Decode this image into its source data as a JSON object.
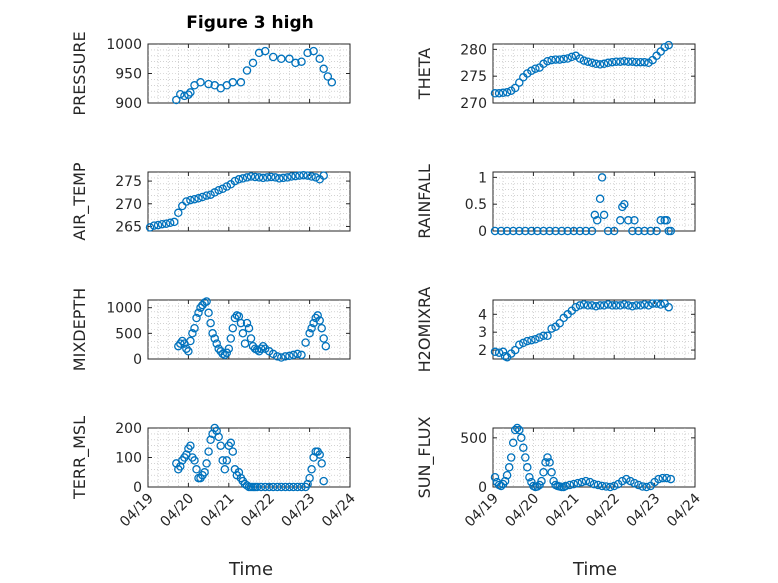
{
  "figure": {
    "title": "Figure 3 high",
    "xlabel": "Time"
  },
  "chart_data": [
    {
      "type": "scatter",
      "ylabel": "PRESSURE",
      "xlim": [
        0,
        5
      ],
      "ylim": [
        900,
        1000
      ],
      "yticks": [
        900,
        950,
        1000
      ],
      "grid": true,
      "minor_grid": true,
      "x": [
        0.7,
        0.8,
        0.9,
        1.0,
        1.05,
        1.15,
        1.3,
        1.5,
        1.65,
        1.8,
        1.95,
        2.1,
        2.3,
        2.45,
        2.6,
        2.75,
        2.9,
        3.1,
        3.3,
        3.5,
        3.65,
        3.8,
        3.95,
        4.1,
        4.25,
        4.35,
        4.45,
        4.55
      ],
      "y": [
        905,
        915,
        912,
        914,
        918,
        930,
        935,
        932,
        930,
        925,
        930,
        935,
        935,
        955,
        968,
        985,
        988,
        978,
        975,
        975,
        968,
        970,
        985,
        988,
        975,
        958,
        945,
        935
      ]
    },
    {
      "type": "scatter",
      "ylabel": "THETA",
      "xlim": [
        0,
        5
      ],
      "ylim": [
        270,
        281
      ],
      "yticks": [
        270,
        275,
        280
      ],
      "grid": true,
      "minor_grid": true,
      "x": [
        0.05,
        0.15,
        0.25,
        0.35,
        0.45,
        0.55,
        0.65,
        0.75,
        0.85,
        0.95,
        1.05,
        1.15,
        1.25,
        1.35,
        1.45,
        1.55,
        1.65,
        1.75,
        1.85,
        1.95,
        2.05,
        2.15,
        2.25,
        2.35,
        2.45,
        2.55,
        2.65,
        2.75,
        2.85,
        2.95,
        3.05,
        3.15,
        3.25,
        3.35,
        3.45,
        3.55,
        3.65,
        3.75,
        3.85,
        3.95,
        4.05,
        4.15,
        4.25,
        4.35
      ],
      "y": [
        271.8,
        271.8,
        271.9,
        272.0,
        272.3,
        272.8,
        273.8,
        274.8,
        275.5,
        276.0,
        276.4,
        276.6,
        277.3,
        277.8,
        278.0,
        278.1,
        278.1,
        278.2,
        278.3,
        278.6,
        278.8,
        278.3,
        277.9,
        277.7,
        277.5,
        277.3,
        277.2,
        277.3,
        277.5,
        277.6,
        277.7,
        277.7,
        277.8,
        277.7,
        277.7,
        277.6,
        277.6,
        277.6,
        277.5,
        278.0,
        278.8,
        279.6,
        280.4,
        280.8
      ]
    },
    {
      "type": "scatter",
      "ylabel": "AIR_TEMP",
      "xlim": [
        0,
        5
      ],
      "ylim": [
        264,
        277
      ],
      "yticks": [
        265,
        270,
        275
      ],
      "grid": true,
      "minor_grid": true,
      "x": [
        0.05,
        0.15,
        0.25,
        0.35,
        0.45,
        0.55,
        0.65,
        0.75,
        0.85,
        0.95,
        1.05,
        1.15,
        1.25,
        1.35,
        1.45,
        1.55,
        1.65,
        1.75,
        1.85,
        1.95,
        2.05,
        2.15,
        2.25,
        2.35,
        2.45,
        2.55,
        2.65,
        2.75,
        2.85,
        2.95,
        3.05,
        3.15,
        3.25,
        3.35,
        3.45,
        3.55,
        3.65,
        3.75,
        3.85,
        3.95,
        4.05,
        4.15,
        4.25,
        4.35
      ],
      "y": [
        264.8,
        265.2,
        265.3,
        265.5,
        265.6,
        265.8,
        266.0,
        268.0,
        269.5,
        270.5,
        270.8,
        271.0,
        271.2,
        271.5,
        271.8,
        272.0,
        272.5,
        273.0,
        273.3,
        273.8,
        274.3,
        275.0,
        275.4,
        275.6,
        275.8,
        276.0,
        275.9,
        275.8,
        275.7,
        275.8,
        275.9,
        275.8,
        275.6,
        275.7,
        275.8,
        276.0,
        276.1,
        276.2,
        276.3,
        276.2,
        276.0,
        275.8,
        275.4,
        276.2
      ]
    },
    {
      "type": "scatter",
      "ylabel": "RAINFALL",
      "xlim": [
        0,
        5
      ],
      "ylim": [
        0,
        1.1
      ],
      "yticks": [
        0,
        0.5,
        1
      ],
      "grid": true,
      "minor_grid": true,
      "x": [
        0.05,
        0.2,
        0.35,
        0.5,
        0.65,
        0.8,
        0.95,
        1.1,
        1.25,
        1.4,
        1.55,
        1.7,
        1.85,
        2.0,
        2.15,
        2.3,
        2.45,
        2.52,
        2.58,
        2.65,
        2.7,
        2.75,
        2.85,
        3.0,
        3.15,
        3.2,
        3.25,
        3.35,
        3.45,
        3.5,
        3.6,
        3.75,
        3.9,
        4.05,
        4.15,
        4.25,
        4.3,
        4.35,
        4.4
      ],
      "y": [
        0,
        0,
        0,
        0,
        0,
        0,
        0,
        0,
        0,
        0,
        0,
        0,
        0,
        0,
        0,
        0,
        0,
        0.3,
        0.2,
        0.6,
        1.0,
        0.3,
        0,
        0,
        0.2,
        0.45,
        0.5,
        0.2,
        0,
        0.2,
        0,
        0,
        0,
        0,
        0.2,
        0.2,
        0.2,
        0,
        0
      ]
    },
    {
      "type": "scatter",
      "ylabel": "MIXDEPTH",
      "xlim": [
        0,
        5
      ],
      "ylim": [
        0,
        1150
      ],
      "yticks": [
        0,
        500,
        1000
      ],
      "grid": true,
      "minor_grid": true,
      "x": [
        0.75,
        0.8,
        0.85,
        0.9,
        0.95,
        1.0,
        1.05,
        1.1,
        1.15,
        1.2,
        1.25,
        1.3,
        1.35,
        1.4,
        1.45,
        1.5,
        1.55,
        1.6,
        1.65,
        1.7,
        1.75,
        1.8,
        1.85,
        1.9,
        1.95,
        2.0,
        2.05,
        2.1,
        2.15,
        2.2,
        2.25,
        2.3,
        2.35,
        2.4,
        2.45,
        2.5,
        2.55,
        2.6,
        2.65,
        2.7,
        2.75,
        2.8,
        2.85,
        2.9,
        3.0,
        3.1,
        3.2,
        3.3,
        3.4,
        3.5,
        3.6,
        3.7,
        3.8,
        3.9,
        4.0,
        4.05,
        4.1,
        4.15,
        4.2,
        4.25,
        4.3,
        4.35,
        4.4
      ],
      "y": [
        250,
        300,
        350,
        300,
        200,
        150,
        350,
        500,
        600,
        800,
        900,
        1000,
        1050,
        1100,
        1120,
        900,
        700,
        500,
        400,
        300,
        200,
        150,
        100,
        80,
        120,
        200,
        400,
        600,
        800,
        850,
        830,
        700,
        500,
        300,
        700,
        600,
        400,
        250,
        200,
        180,
        150,
        200,
        250,
        200,
        150,
        100,
        50,
        30,
        50,
        60,
        80,
        100,
        80,
        320,
        500,
        600,
        700,
        800,
        850,
        750,
        600,
        400,
        250
      ]
    },
    {
      "type": "scatter",
      "ylabel": "H2OMIXRA",
      "xlim": [
        0,
        5
      ],
      "ylim": [
        1.5,
        4.8
      ],
      "yticks": [
        2,
        3,
        4
      ],
      "grid": true,
      "minor_grid": true,
      "x": [
        0.05,
        0.15,
        0.25,
        0.3,
        0.35,
        0.45,
        0.55,
        0.65,
        0.75,
        0.85,
        0.95,
        1.05,
        1.15,
        1.25,
        1.35,
        1.45,
        1.55,
        1.65,
        1.75,
        1.85,
        1.95,
        2.05,
        2.15,
        2.25,
        2.35,
        2.45,
        2.55,
        2.65,
        2.75,
        2.85,
        2.95,
        3.05,
        3.15,
        3.25,
        3.35,
        3.45,
        3.55,
        3.65,
        3.75,
        3.85,
        3.95,
        4.05,
        4.15,
        4.25,
        4.35
      ],
      "y": [
        1.9,
        1.85,
        1.9,
        1.65,
        1.6,
        1.8,
        2.0,
        2.3,
        2.4,
        2.5,
        2.55,
        2.6,
        2.7,
        2.8,
        2.8,
        3.2,
        3.3,
        3.5,
        3.8,
        4.0,
        4.2,
        4.4,
        4.5,
        4.55,
        4.5,
        4.5,
        4.45,
        4.5,
        4.5,
        4.55,
        4.5,
        4.5,
        4.5,
        4.55,
        4.5,
        4.45,
        4.5,
        4.5,
        4.55,
        4.5,
        4.6,
        4.6,
        4.55,
        4.6,
        4.4
      ]
    },
    {
      "type": "scatter",
      "ylabel": "TERR_MSL",
      "xlim": [
        0,
        5
      ],
      "ylim": [
        0,
        200
      ],
      "yticks": [
        0,
        100,
        200
      ],
      "grid": true,
      "minor_grid": true,
      "x": [
        0.7,
        0.75,
        0.8,
        0.85,
        0.9,
        0.95,
        1.0,
        1.05,
        1.1,
        1.15,
        1.2,
        1.25,
        1.3,
        1.35,
        1.4,
        1.45,
        1.5,
        1.55,
        1.6,
        1.65,
        1.7,
        1.75,
        1.8,
        1.85,
        1.9,
        1.95,
        2.0,
        2.05,
        2.1,
        2.15,
        2.2,
        2.25,
        2.3,
        2.35,
        2.4,
        2.45,
        2.5,
        2.55,
        2.6,
        2.65,
        2.7,
        2.8,
        2.9,
        3.0,
        3.1,
        3.2,
        3.3,
        3.4,
        3.5,
        3.6,
        3.7,
        3.8,
        3.9,
        3.95,
        4.0,
        4.05,
        4.1,
        4.15,
        4.2,
        4.25,
        4.3,
        4.35
      ],
      "y": [
        80,
        60,
        70,
        90,
        100,
        110,
        130,
        140,
        100,
        90,
        60,
        30,
        30,
        40,
        50,
        80,
        120,
        160,
        180,
        200,
        190,
        170,
        140,
        90,
        60,
        90,
        140,
        150,
        120,
        60,
        40,
        50,
        30,
        20,
        10,
        5,
        0,
        0,
        0,
        0,
        0,
        0,
        0,
        0,
        0,
        0,
        0,
        0,
        0,
        0,
        0,
        0,
        0,
        10,
        30,
        60,
        100,
        120,
        120,
        110,
        80,
        20
      ]
    },
    {
      "type": "scatter",
      "ylabel": "SUN_FLUX",
      "xlim": [
        0,
        5
      ],
      "ylim": [
        0,
        600
      ],
      "yticks": [
        0,
        500
      ],
      "grid": true,
      "minor_grid": true,
      "x": [
        0.05,
        0.1,
        0.15,
        0.2,
        0.25,
        0.3,
        0.35,
        0.4,
        0.45,
        0.5,
        0.55,
        0.6,
        0.65,
        0.7,
        0.75,
        0.8,
        0.85,
        0.9,
        0.95,
        1.0,
        1.05,
        1.1,
        1.15,
        1.2,
        1.25,
        1.3,
        1.35,
        1.4,
        1.45,
        1.5,
        1.55,
        1.6,
        1.65,
        1.7,
        1.75,
        1.8,
        1.9,
        2.0,
        2.1,
        2.2,
        2.3,
        2.4,
        2.5,
        2.6,
        2.7,
        2.8,
        2.9,
        3.0,
        3.1,
        3.2,
        3.3,
        3.4,
        3.5,
        3.6,
        3.7,
        3.8,
        3.9,
        4.0,
        4.1,
        4.2,
        4.3,
        4.4
      ],
      "y": [
        100,
        50,
        20,
        10,
        30,
        60,
        120,
        200,
        300,
        450,
        580,
        600,
        580,
        500,
        400,
        300,
        200,
        100,
        50,
        10,
        0,
        5,
        20,
        60,
        150,
        250,
        300,
        250,
        150,
        60,
        20,
        10,
        5,
        0,
        0,
        10,
        20,
        30,
        40,
        50,
        60,
        50,
        30,
        20,
        10,
        5,
        0,
        10,
        30,
        60,
        80,
        60,
        40,
        20,
        5,
        0,
        10,
        50,
        80,
        90,
        90,
        80
      ]
    }
  ],
  "xticks": [
    "04/19",
    "04/20",
    "04/21",
    "04/22",
    "04/23",
    "04/24"
  ]
}
